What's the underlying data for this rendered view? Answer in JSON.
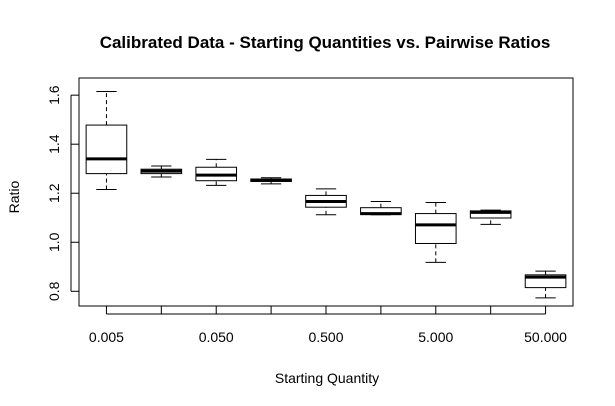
{
  "chart_data": {
    "type": "boxplot",
    "title": "Calibrated Data - Starting Quantities vs. Pairwise Ratios",
    "xlabel": "Starting Quantity",
    "ylabel": "Ratio",
    "ylim": [
      0.74,
      1.67
    ],
    "y_ticks": [
      "0.8",
      "1.0",
      "1.2",
      "1.4",
      "1.6"
    ],
    "x_tick_labels": [
      "0.005",
      "0.050",
      "0.500",
      "5.000",
      "50.000"
    ],
    "grid": false,
    "legend": "none",
    "boxes": [
      {
        "whisker_low": 1.215,
        "q1": 1.28,
        "median": 1.34,
        "q3": 1.478,
        "whisker_high": 1.615
      },
      {
        "whisker_low": 1.266,
        "q1": 1.28,
        "median": 1.29,
        "q3": 1.298,
        "whisker_high": 1.311
      },
      {
        "whisker_low": 1.232,
        "q1": 1.251,
        "median": 1.274,
        "q3": 1.306,
        "whisker_high": 1.338
      },
      {
        "whisker_low": 1.238,
        "q1": 1.248,
        "median": 1.254,
        "q3": 1.258,
        "whisker_high": 1.263
      },
      {
        "whisker_low": 1.112,
        "q1": 1.143,
        "median": 1.166,
        "q3": 1.191,
        "whisker_high": 1.218
      },
      {
        "whisker_low": 1.112,
        "q1": 1.113,
        "median": 1.117,
        "q3": 1.141,
        "whisker_high": 1.166
      },
      {
        "whisker_low": 0.918,
        "q1": 0.995,
        "median": 1.071,
        "q3": 1.117,
        "whisker_high": 1.162
      },
      {
        "whisker_low": 1.073,
        "q1": 1.099,
        "median": 1.122,
        "q3": 1.128,
        "whisker_high": 1.131
      },
      {
        "whisker_low": 0.773,
        "q1": 0.815,
        "median": 0.858,
        "q3": 0.867,
        "whisker_high": 0.882
      }
    ]
  }
}
